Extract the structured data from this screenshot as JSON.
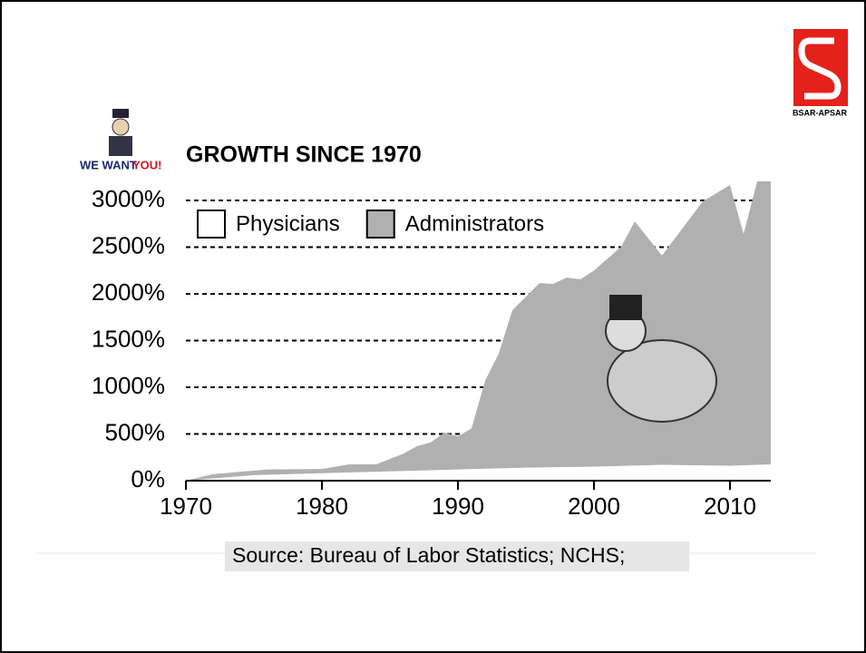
{
  "chart_data": {
    "type": "area",
    "title": "GROWTH SINCE 1970",
    "badge": {
      "line1": "WE WANT",
      "line2": "YOU!"
    },
    "logo": "BSAR-APSAR",
    "source": "Source: Bureau of Labor Statistics; NCHS;",
    "series": [
      {
        "name": "Administrators",
        "color": "#b0b0b0",
        "x": [
          1970,
          1972,
          1976,
          1980,
          1982,
          1984,
          1986,
          1987,
          1988,
          1989,
          1990,
          1991,
          1992,
          1993,
          1994,
          1996,
          1997,
          1998,
          1999,
          2000,
          2002,
          2003,
          2005,
          2008,
          2010,
          2011,
          2012,
          2013
        ],
        "values": [
          0,
          70,
          120,
          125,
          175,
          175,
          290,
          370,
          410,
          515,
          475,
          560,
          1070,
          1360,
          1825,
          2115,
          2105,
          2175,
          2155,
          2250,
          2505,
          2775,
          2410,
          2990,
          3165,
          2640,
          3205,
          3205
        ]
      },
      {
        "name": "Physicians",
        "color": "#ffffff",
        "x": [
          1970,
          1975,
          1980,
          1985,
          1990,
          1995,
          2000,
          2005,
          2010,
          2013
        ],
        "values": [
          0,
          60,
          80,
          100,
          120,
          140,
          150,
          170,
          160,
          175
        ]
      }
    ],
    "xlim": [
      1970,
      2013
    ],
    "xticks": [
      1970,
      1980,
      1990,
      2000,
      2010
    ],
    "ylim": [
      0,
      3000
    ],
    "yticks": [
      {
        "value": 0,
        "label": "0%"
      },
      {
        "value": 500,
        "label": "500%"
      },
      {
        "value": 1000,
        "label": "1000%"
      },
      {
        "value": 1500,
        "label": "1500%"
      },
      {
        "value": 2000,
        "label": "2000%"
      },
      {
        "value": 2500,
        "label": "2500%"
      },
      {
        "value": 3000,
        "label": "3000%"
      }
    ],
    "grid": true,
    "legend": "top-left"
  }
}
